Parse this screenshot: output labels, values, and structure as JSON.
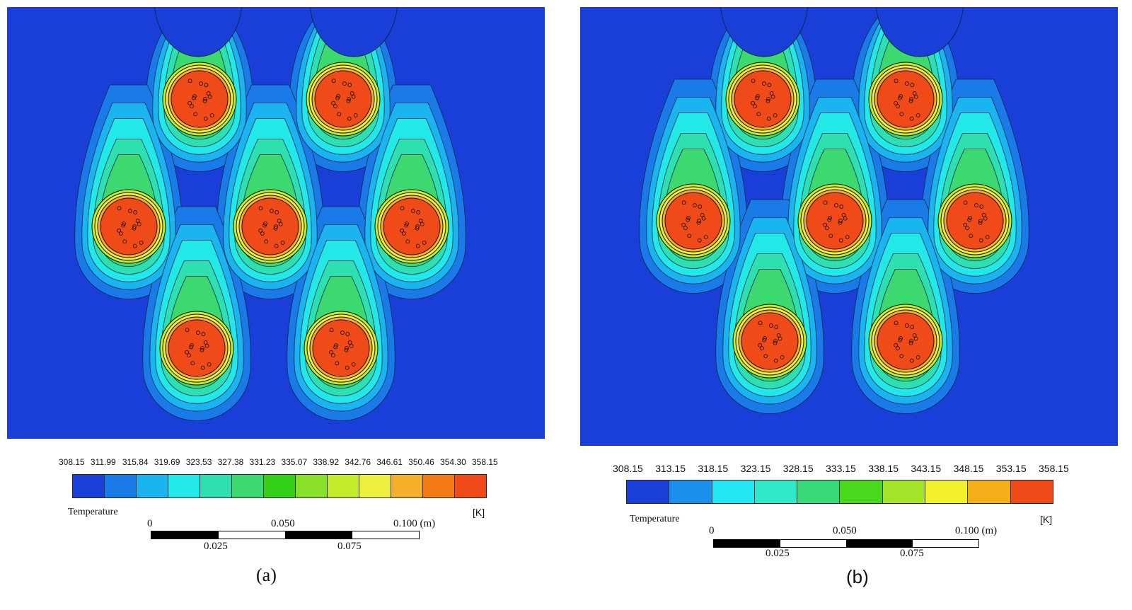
{
  "panels": [
    {
      "id": "a",
      "caption": "(a)",
      "legend": {
        "title": "Temperature",
        "unit": "[K]",
        "ticks": [
          "308.15",
          "311.99",
          "315.84",
          "319.69",
          "323.53",
          "327.38",
          "331.23",
          "335.07",
          "338.92",
          "342.76",
          "346.61",
          "350.46",
          "354.30",
          "358.15"
        ],
        "colors": [
          "#1a3fd8",
          "#1a7ae8",
          "#1ab4f0",
          "#22e8e8",
          "#2ee0b0",
          "#3cd870",
          "#34d018",
          "#88e02a",
          "#c4ec2a",
          "#eef040",
          "#f4b028",
          "#f47a14",
          "#f04a18"
        ]
      },
      "scale": {
        "labels_top": [
          "0",
          "0.050",
          "0.100 (m)"
        ],
        "labels_bottom": [
          "0.025",
          "0.075"
        ]
      }
    },
    {
      "id": "b",
      "caption": "(b)",
      "legend": {
        "title": "Temperature",
        "unit": "[K]",
        "ticks": [
          "308.15",
          "313.15",
          "318.15",
          "323.15",
          "328.15",
          "333.15",
          "338.15",
          "343.15",
          "348.15",
          "353.15",
          "358.15"
        ],
        "colors": [
          "#1a3fd8",
          "#1a90ec",
          "#22e8f4",
          "#2ee8c8",
          "#36d878",
          "#48d81c",
          "#a4e42a",
          "#f2f22a",
          "#f4ae18",
          "#f04a18"
        ]
      },
      "scale": {
        "labels_top": [
          "0",
          "0.050",
          "0.100 (m)"
        ],
        "labels_bottom": [
          "0.025",
          "0.075"
        ]
      }
    }
  ],
  "colors": {
    "background": "#1a3fd8",
    "plume_outer": "#1a7ae8",
    "plume_mid": "#22e8e8",
    "plume_inner": "#3cd870",
    "core_ring": "#f4b028",
    "core": "#f04a18"
  }
}
